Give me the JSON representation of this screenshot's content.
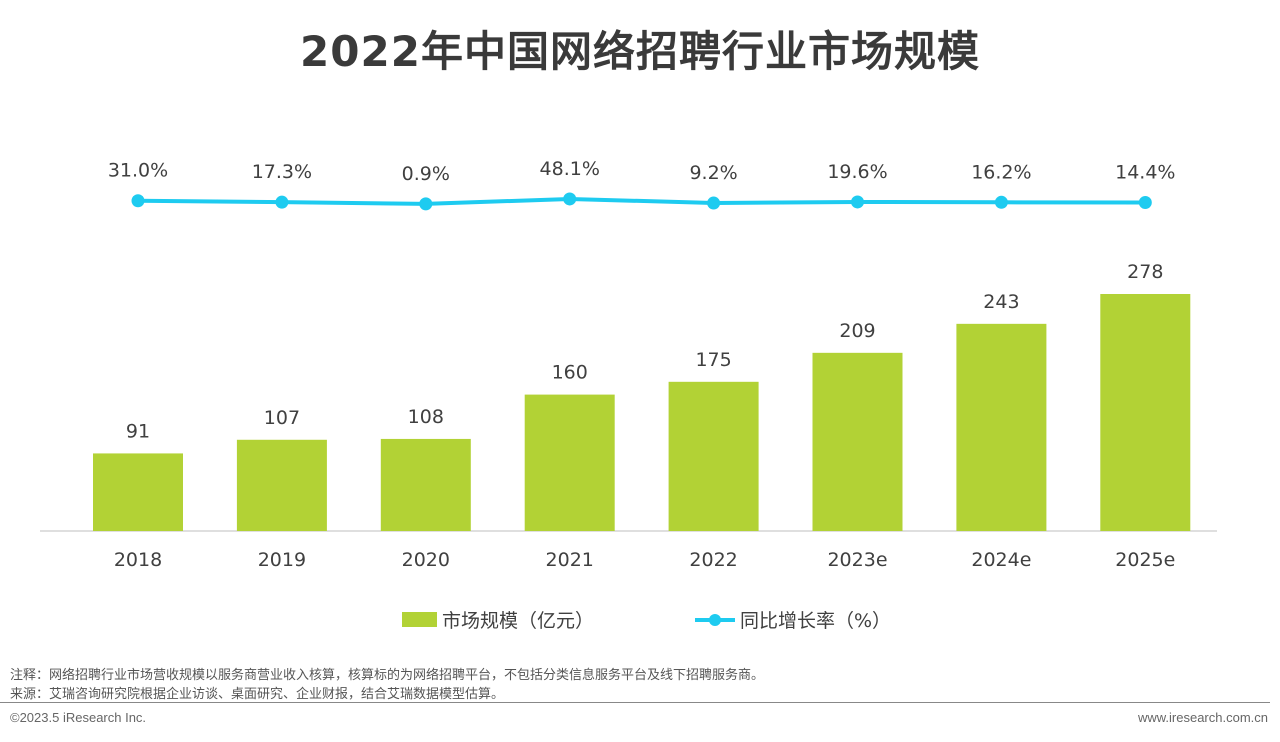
{
  "chart_data": {
    "type": "bar",
    "title": "2022年中国网络招聘行业市场规模",
    "categories": [
      "2018",
      "2019",
      "2020",
      "2021",
      "2022",
      "2023e",
      "2024e",
      "2025e"
    ],
    "series": [
      {
        "name": "市场规模（亿元）",
        "type": "bar",
        "color": "#b2d235",
        "values": [
          91,
          107,
          108,
          160,
          175,
          209,
          243,
          278
        ]
      },
      {
        "name": "同比增长率（%）",
        "type": "line",
        "color": "#1ecbf0",
        "values": [
          31.0,
          17.3,
          0.9,
          48.1,
          9.2,
          19.6,
          16.2,
          14.4
        ],
        "labels": [
          "31.0%",
          "17.3%",
          "0.9%",
          "48.1%",
          "9.2%",
          "19.6%",
          "16.2%",
          "14.4%"
        ]
      }
    ],
    "legend_position": "bottom",
    "grid": false
  },
  "footer": {
    "note": "注释：网络招聘行业市场营收规模以服务商营业收入核算，核算标的为网络招聘平台，不包括分类信息服务平台及线下招聘服务商。",
    "source": "来源：艾瑞咨询研究院根据企业访谈、桌面研究、企业财报，结合艾瑞数据模型估算。",
    "copyright": "©2023.5 iResearch Inc.",
    "website": "www.iresearch.com.cn"
  }
}
